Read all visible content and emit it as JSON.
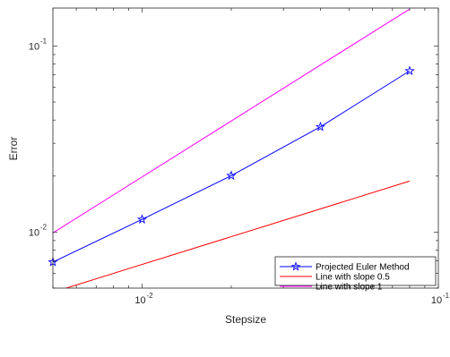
{
  "chart_data": {
    "type": "line",
    "title": "",
    "xlabel": "Stepsize",
    "ylabel": "Error",
    "xscale": "log",
    "yscale": "log",
    "xlim": [
      0.005,
      0.1
    ],
    "ylim": [
      0.005,
      0.16
    ],
    "grid": false,
    "legend_location": "bottom-right",
    "x_ticks": [
      {
        "value": 0.01,
        "base": "10",
        "exp": "-2"
      },
      {
        "value": 0.1,
        "base": "10",
        "exp": "-1"
      }
    ],
    "y_ticks": [
      {
        "value": 0.01,
        "base": "10",
        "exp": "-2"
      },
      {
        "value": 0.1,
        "base": "10",
        "exp": "-1"
      }
    ],
    "series": [
      {
        "name": "Projected Euler Method",
        "color": "#0000ff",
        "marker": "star",
        "x": [
          0.005,
          0.01,
          0.02,
          0.04,
          0.08
        ],
        "y": [
          0.0069,
          0.0117,
          0.0201,
          0.0368,
          0.0735
        ]
      },
      {
        "name": "Line with slope 0.5",
        "color": "#ff0000",
        "marker": "none",
        "x": [
          0.005,
          0.08
        ],
        "y": [
          0.00475,
          0.0188
        ]
      },
      {
        "name": "Line with slope 1",
        "color": "#ff00ff",
        "marker": "none",
        "x": [
          0.005,
          0.08
        ],
        "y": [
          0.0099,
          0.158
        ]
      }
    ]
  }
}
